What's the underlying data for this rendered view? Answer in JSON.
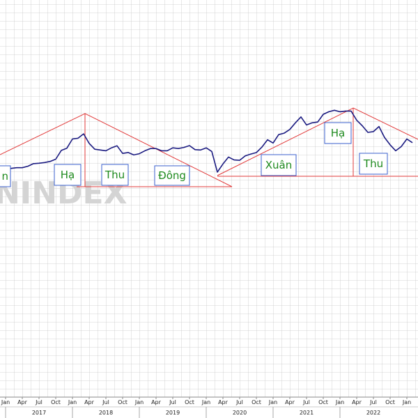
{
  "chart_data": {
    "type": "line",
    "watermark": "NINDEX",
    "x": [
      "2017-01",
      "2017-02",
      "2017-03",
      "2017-04",
      "2017-05",
      "2017-06",
      "2017-07",
      "2017-08",
      "2017-09",
      "2017-10",
      "2017-11",
      "2017-12",
      "2018-01",
      "2018-02",
      "2018-03",
      "2018-04",
      "2018-05",
      "2018-06",
      "2018-07",
      "2018-08",
      "2018-09",
      "2018-10",
      "2018-11",
      "2018-12",
      "2019-01",
      "2019-02",
      "2019-03",
      "2019-04",
      "2019-05",
      "2019-06",
      "2019-07",
      "2019-08",
      "2019-09",
      "2019-10",
      "2019-11",
      "2019-12",
      "2020-01",
      "2020-02",
      "2020-03",
      "2020-04",
      "2020-05",
      "2020-06",
      "2020-07",
      "2020-08",
      "2020-09",
      "2020-10",
      "2020-11",
      "2020-12",
      "2021-01",
      "2021-02",
      "2021-03",
      "2021-04",
      "2021-05",
      "2021-06",
      "2021-07",
      "2021-08",
      "2021-09",
      "2021-10",
      "2021-11",
      "2021-12",
      "2022-01",
      "2022-02",
      "2022-03",
      "2022-04",
      "2022-05",
      "2022-06",
      "2022-07",
      "2022-08",
      "2022-09",
      "2022-10",
      "2022-11",
      "2022-12",
      "2023-01",
      "2023-02"
    ],
    "values": [
      690,
      710,
      720,
      720,
      740,
      775,
      780,
      790,
      805,
      835,
      955,
      985,
      1110,
      1120,
      1180,
      1050,
      971,
      960,
      950,
      990,
      1017,
      914,
      926,
      893,
      910,
      950,
      980,
      980,
      950,
      950,
      990,
      980,
      995,
      1020,
      965,
      960,
      990,
      940,
      660,
      770,
      865,
      825,
      820,
      880,
      905,
      925,
      1000,
      1100,
      1055,
      1170,
      1190,
      1240,
      1330,
      1410,
      1300,
      1330,
      1340,
      1445,
      1480,
      1500,
      1480,
      1490,
      1490,
      1365,
      1290,
      1200,
      1210,
      1280,
      1130,
      1030,
      950,
      1007,
      1110,
      1060
    ],
    "color": "#1a1a80",
    "xlim": [
      "2016-12",
      "2023-03"
    ],
    "ylim": [
      -2400,
      3000
    ],
    "xticks": [
      {
        "value": "2017-01",
        "label": "Jan"
      },
      {
        "value": "2017-04",
        "label": "Apr"
      },
      {
        "value": "2017-07",
        "label": "Jul"
      },
      {
        "value": "2017-10",
        "label": "Oct"
      },
      {
        "value": "2018-01",
        "label": "Jan"
      },
      {
        "value": "2018-04",
        "label": "Apr"
      },
      {
        "value": "2018-07",
        "label": "Jul"
      },
      {
        "value": "2018-10",
        "label": "Oct"
      },
      {
        "value": "2019-01",
        "label": "Jan"
      },
      {
        "value": "2019-04",
        "label": "Apr"
      },
      {
        "value": "2019-07",
        "label": "Jul"
      },
      {
        "value": "2019-10",
        "label": "Oct"
      },
      {
        "value": "2020-01",
        "label": "Jan"
      },
      {
        "value": "2020-04",
        "label": "Apr"
      },
      {
        "value": "2020-07",
        "label": "Jul"
      },
      {
        "value": "2020-10",
        "label": "Oct"
      },
      {
        "value": "2021-01",
        "label": "Jan"
      },
      {
        "value": "2021-04",
        "label": "Apr"
      },
      {
        "value": "2021-07",
        "label": "Jul"
      },
      {
        "value": "2021-10",
        "label": "Oct"
      },
      {
        "value": "2022-01",
        "label": "Jan"
      },
      {
        "value": "2022-04",
        "label": "Apr"
      },
      {
        "value": "2022-07",
        "label": "Jul"
      },
      {
        "value": "2022-10",
        "label": "Oct"
      },
      {
        "value": "2023-01",
        "label": "Jan"
      }
    ],
    "years": [
      2017,
      2018,
      2019,
      2020,
      2021,
      2022
    ],
    "annotations": [
      "n",
      "Hạ",
      "Thu",
      "Đông",
      "Xuân",
      "Hạ",
      "Thu"
    ]
  }
}
